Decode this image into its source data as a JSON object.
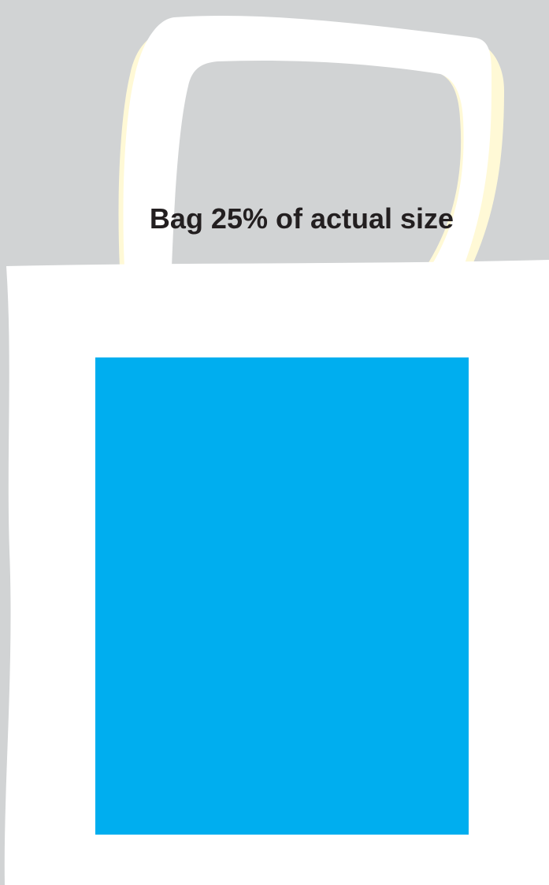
{
  "caption": "Bag 25% of actual size",
  "colors": {
    "background": "#d1d3d4",
    "bag": "#ffffff",
    "bag_outline": "#fff9d6",
    "print_area": "#00aeef",
    "caption_text": "#231f20"
  },
  "illustration": {
    "subject": "tote-bag",
    "print_area_color_name": "cyan"
  }
}
